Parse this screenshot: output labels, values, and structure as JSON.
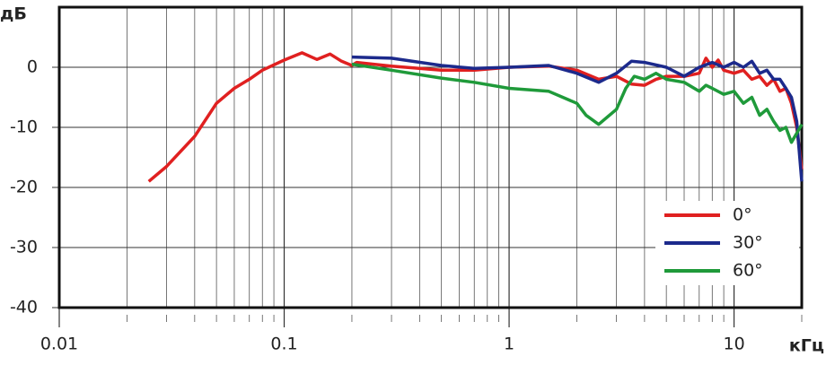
{
  "chart_data": {
    "type": "line",
    "xlabel": "кГц",
    "ylabel": "дБ",
    "log_x": true,
    "grid": true,
    "legend": "lower right",
    "xlim": [
      0.01,
      20
    ],
    "ylim": [
      -40,
      10
    ],
    "xticks": [
      0.01,
      0.1,
      1,
      10
    ],
    "xminorticks": [
      0.02,
      0.03,
      0.04,
      0.05,
      0.06,
      0.07,
      0.08,
      0.09,
      0.2,
      0.3,
      0.4,
      0.5,
      0.6,
      0.7,
      0.8,
      0.9,
      2,
      3,
      4,
      5,
      6,
      7,
      8,
      9,
      20
    ],
    "yticks": [
      0,
      -10,
      -20,
      -30,
      -40
    ],
    "series": [
      {
        "name": "0°",
        "color": "#e02020",
        "x": [
          0.025,
          0.03,
          0.04,
          0.05,
          0.06,
          0.07,
          0.08,
          0.1,
          0.12,
          0.14,
          0.16,
          0.18,
          0.2,
          0.21,
          0.3,
          0.5,
          0.7,
          1,
          1.5,
          2,
          2.5,
          3,
          3.5,
          4,
          4.5,
          5,
          6,
          7,
          7.5,
          8,
          8.5,
          9,
          10,
          11,
          12,
          13,
          14,
          15,
          16,
          17,
          18,
          19,
          20
        ],
        "values": [
          -19,
          -16.5,
          -11.5,
          -6,
          -3.5,
          -2,
          -0.5,
          1.2,
          2.4,
          1.3,
          2.2,
          1,
          0.3,
          0.8,
          0.2,
          -0.5,
          -0.5,
          0,
          0.2,
          -0.5,
          -2,
          -1.5,
          -2.8,
          -3,
          -2,
          -1.5,
          -1.5,
          -1,
          1.5,
          0,
          1.2,
          -0.5,
          -1,
          -0.5,
          -2,
          -1.5,
          -3,
          -2,
          -4,
          -3.5,
          -6,
          -10,
          -17
        ]
      },
      {
        "name": "30°",
        "color": "#1c2a8c",
        "x": [
          0.2,
          0.3,
          0.5,
          0.7,
          1,
          1.5,
          2,
          2.5,
          3,
          3.5,
          4,
          5,
          6,
          7,
          8,
          9,
          10,
          11,
          12,
          13,
          14,
          15,
          16,
          17,
          18,
          19,
          20
        ],
        "values": [
          1.7,
          1.5,
          0.3,
          -0.2,
          0,
          0.3,
          -1,
          -2.5,
          -1,
          1,
          0.8,
          0,
          -1.5,
          0,
          0.8,
          0,
          0.8,
          0,
          1,
          -1,
          -0.5,
          -2,
          -2,
          -3.5,
          -5,
          -9,
          -19
        ]
      },
      {
        "name": "60°",
        "color": "#1f9a3a",
        "x": [
          0.2,
          0.3,
          0.5,
          0.7,
          1,
          1.5,
          2,
          2.2,
          2.5,
          3,
          3.3,
          3.6,
          4,
          4.5,
          5,
          6,
          7,
          7.5,
          8,
          9,
          10,
          11,
          12,
          13,
          14,
          15,
          16,
          17,
          18,
          19,
          20
        ],
        "values": [
          0.5,
          -0.5,
          -1.8,
          -2.5,
          -3.5,
          -4,
          -6,
          -8,
          -9.5,
          -7,
          -3.5,
          -1.5,
          -2,
          -1,
          -2,
          -2.5,
          -4,
          -3,
          -3.5,
          -4.5,
          -4,
          -6,
          -5,
          -8,
          -7,
          -9,
          -10.5,
          -10,
          -12.5,
          -11,
          -9.5
        ]
      }
    ]
  }
}
